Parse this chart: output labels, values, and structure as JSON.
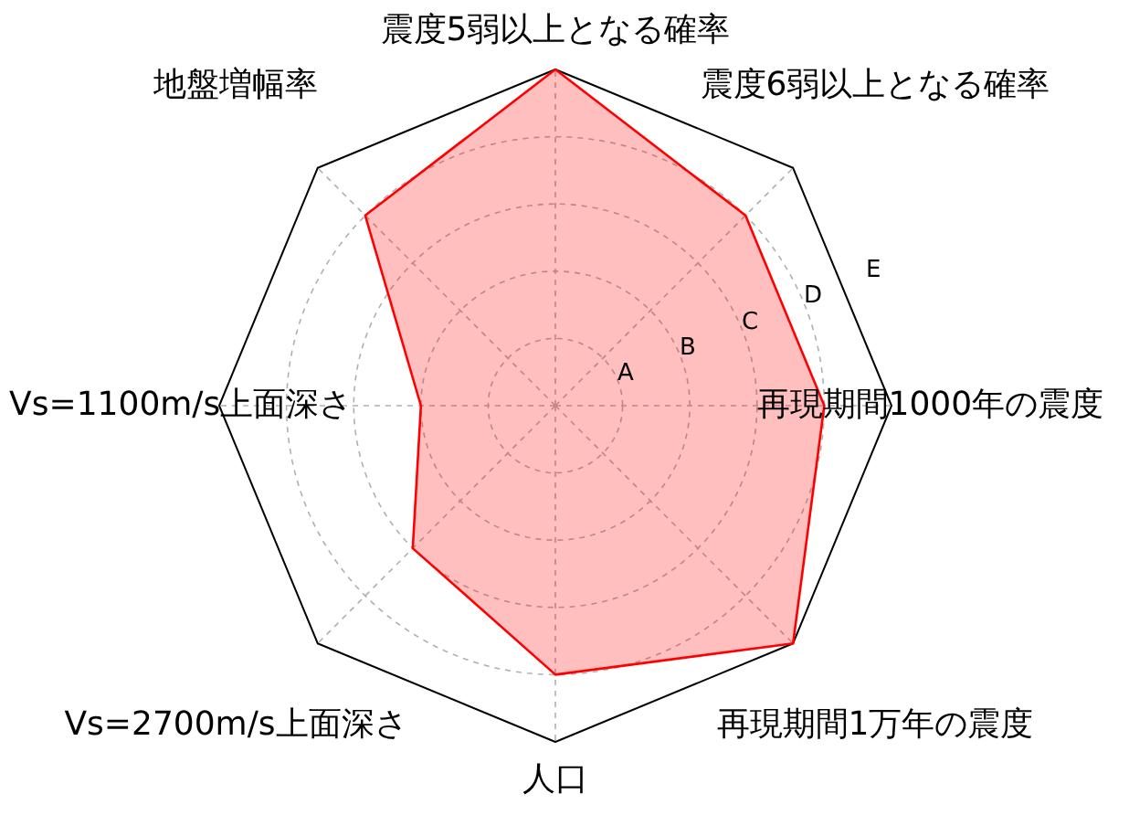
{
  "chart_data": {
    "type": "radar",
    "categories": [
      "震度5弱以上となる確率",
      "震度6弱以上となる確率",
      "再現期間1000年の震度",
      "再現期間1万年の震度",
      "人口",
      "Vs=2700m/s上面深さ",
      "Vs=1100m/s上面深さ",
      "地盤増幅率"
    ],
    "series": [
      {
        "color": "#ff0000",
        "values": [
          5,
          4,
          4,
          5,
          4,
          3,
          2,
          4
        ]
      }
    ],
    "ylim": [
      0,
      5
    ],
    "yticks": [
      {
        "value": 1,
        "label": "A"
      },
      {
        "value": 2,
        "label": "B"
      },
      {
        "value": 3,
        "label": "C"
      },
      {
        "value": 4,
        "label": "D"
      },
      {
        "value": 5,
        "label": "E"
      }
    ],
    "grid": true
  }
}
